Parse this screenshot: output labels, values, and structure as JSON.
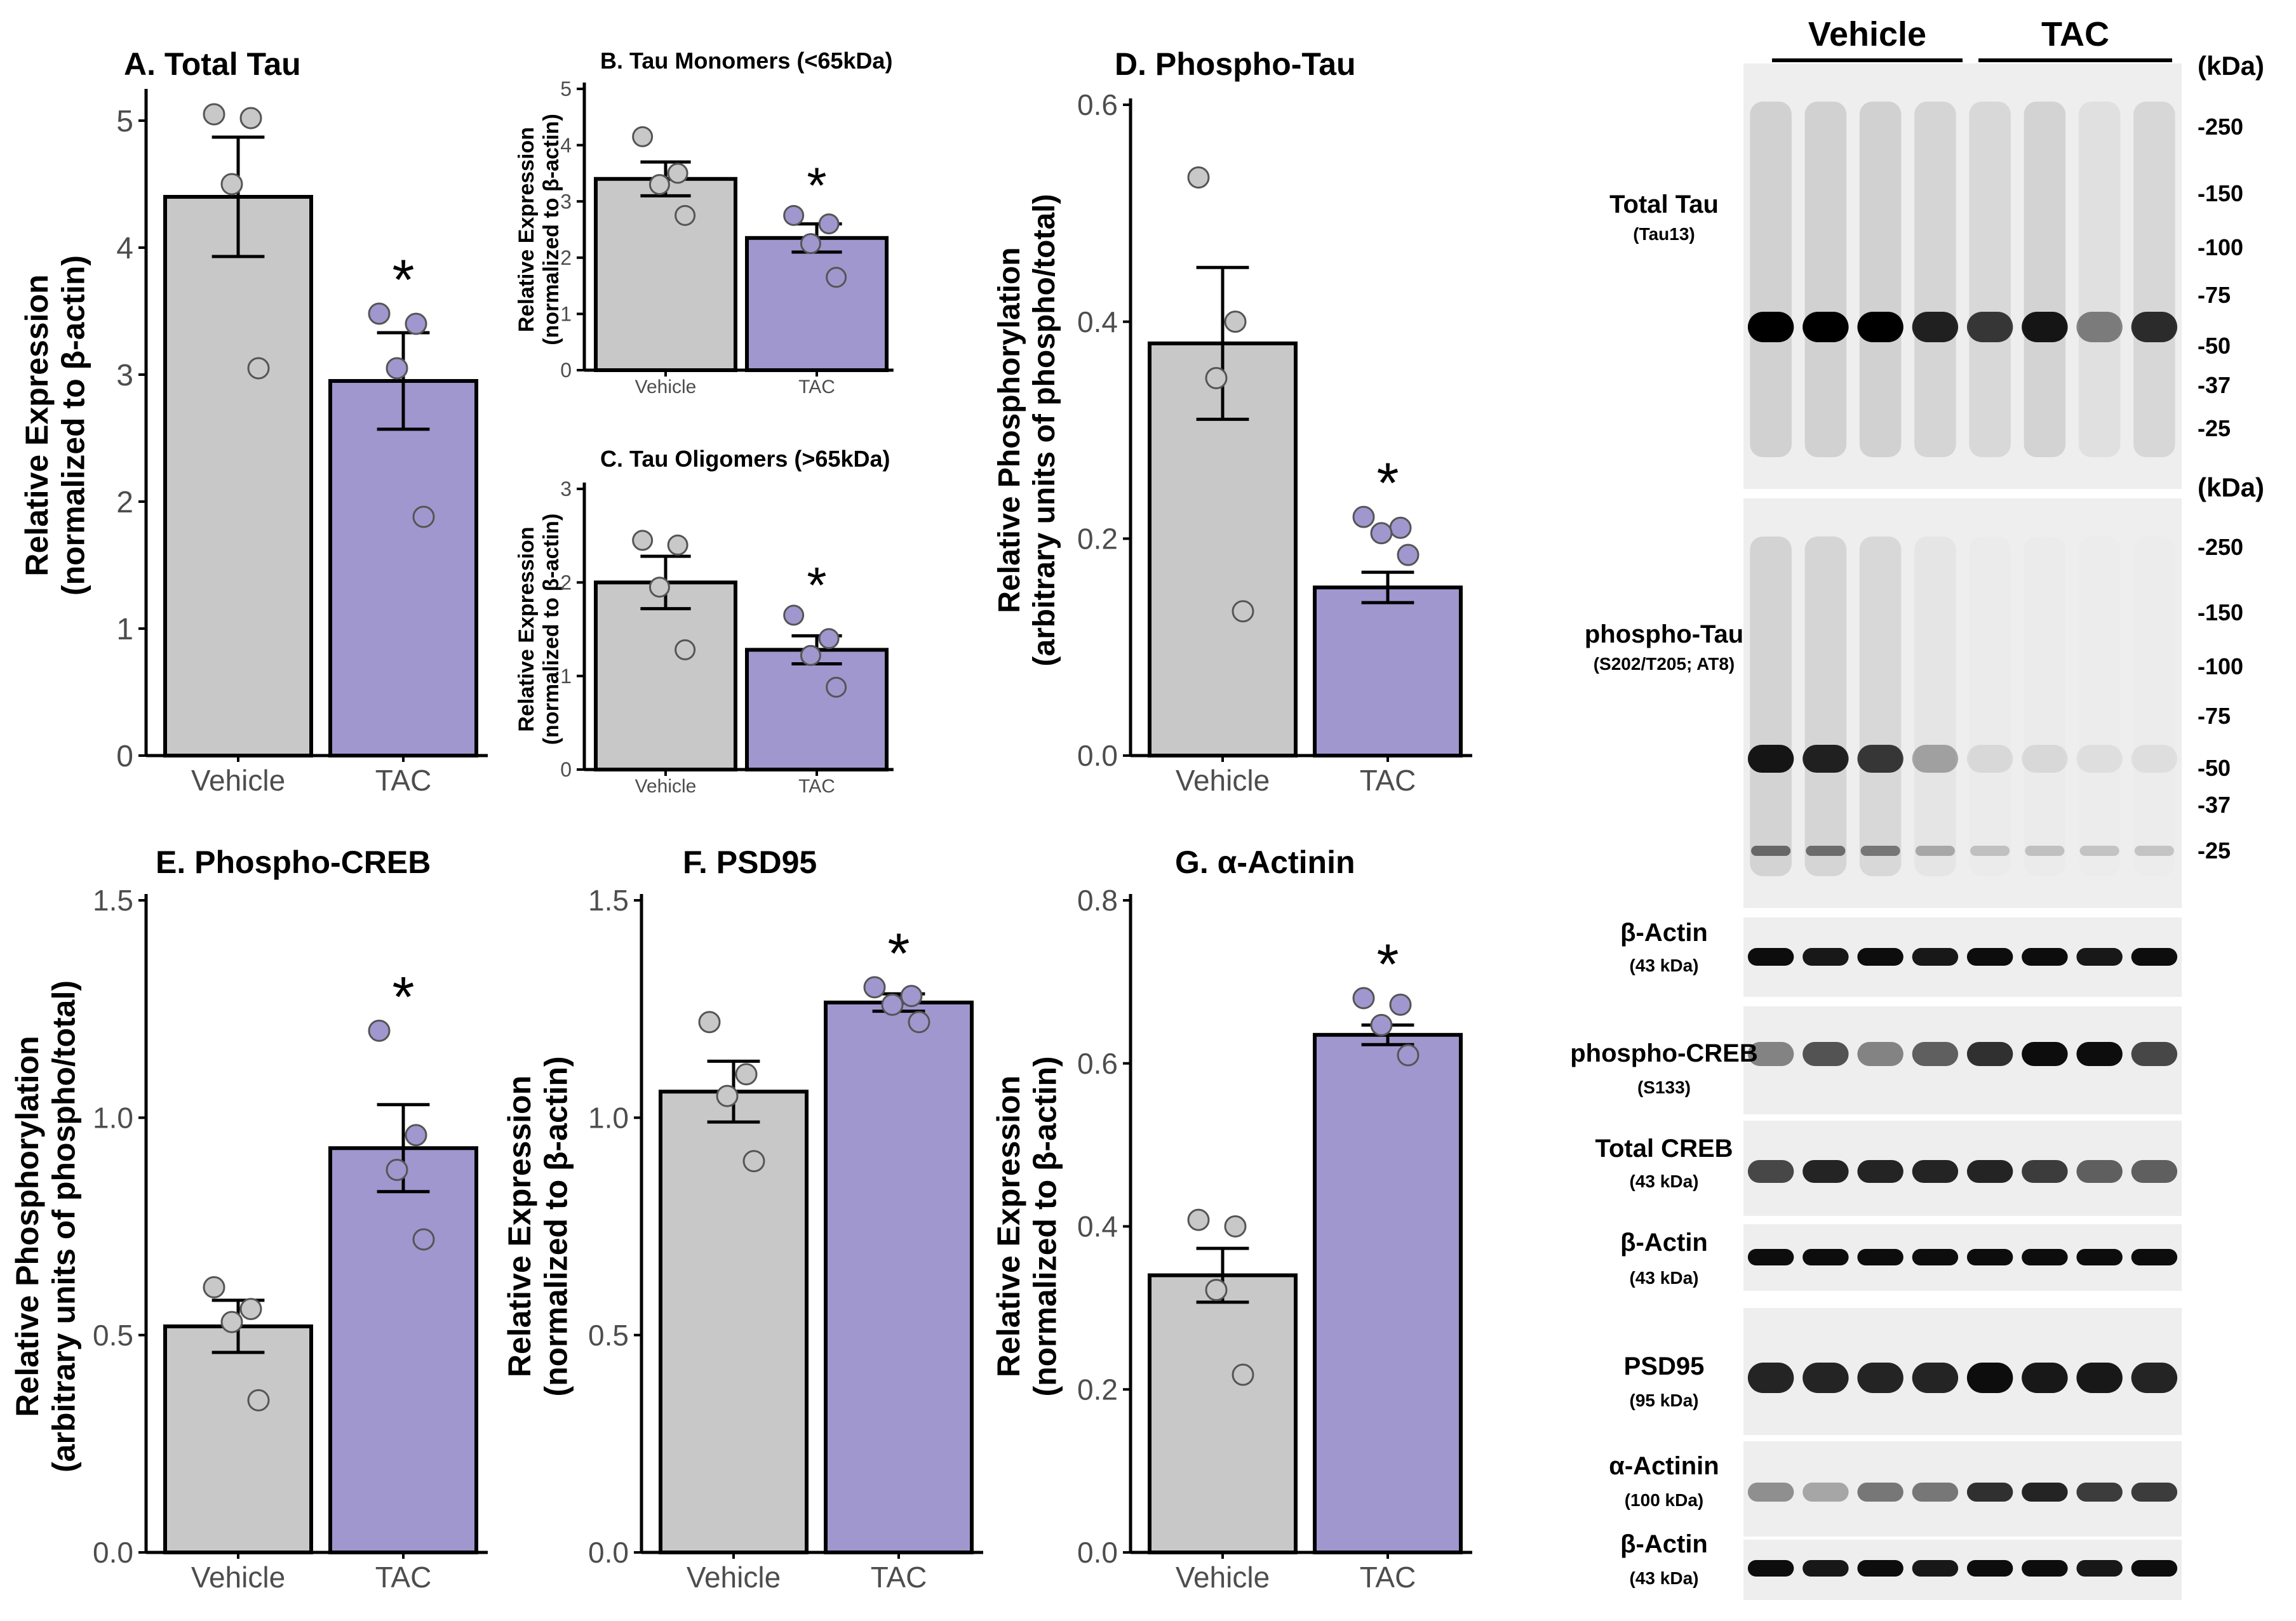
{
  "colors": {
    "vehicle_bar": "#c8c8c8",
    "tac_bar": "#a097cf",
    "axis": "#000000",
    "tick_text": "#4d4d4d"
  },
  "chart_data": [
    {
      "id": "A",
      "type": "bar",
      "title": "A. Total Tau",
      "ylabel": [
        "Relative Expression",
        "(normalized to  β-actin)"
      ],
      "categories": [
        "Vehicle",
        "TAC"
      ],
      "values": [
        4.4,
        2.95
      ],
      "errors": [
        0.47,
        0.38
      ],
      "points": [
        [
          5.05,
          5.02,
          4.5,
          3.05
        ],
        [
          3.48,
          3.4,
          3.05,
          1.88
        ]
      ],
      "ylim": [
        0,
        5.2
      ],
      "yticks": [
        0,
        1,
        2,
        3,
        4,
        5
      ],
      "significance": "*"
    },
    {
      "id": "B",
      "type": "bar",
      "title": "B. Tau Monomers (<65kDa)",
      "ylabel": [
        "Relative Expression",
        "(normalized to  β-actin)"
      ],
      "categories": [
        "Vehicle",
        "TAC"
      ],
      "values": [
        3.4,
        2.35
      ],
      "errors": [
        0.3,
        0.25
      ],
      "points": [
        [
          4.15,
          3.5,
          3.3,
          2.75
        ],
        [
          2.75,
          2.6,
          2.25,
          1.65
        ]
      ],
      "ylim": [
        0,
        5
      ],
      "yticks": [
        0,
        1,
        2,
        3,
        4,
        5
      ],
      "significance": "*"
    },
    {
      "id": "C",
      "type": "bar",
      "title": "C. Tau Oligomers (>65kDa)",
      "ylabel": [
        "Relative Expression",
        "(normalized to  β-actin)"
      ],
      "categories": [
        "Vehicle",
        "TAC"
      ],
      "values": [
        2.0,
        1.28
      ],
      "errors": [
        0.28,
        0.15
      ],
      "points": [
        [
          2.45,
          2.4,
          1.95,
          1.28
        ],
        [
          1.65,
          1.4,
          1.22,
          0.88
        ]
      ],
      "ylim": [
        0,
        3
      ],
      "yticks": [
        0,
        1,
        2,
        3
      ],
      "significance": "*"
    },
    {
      "id": "D",
      "type": "bar",
      "title": "D. Phospho-Tau",
      "ylabel": [
        "Relative Phosphorylation",
        "(arbitrary units of phospho/total)"
      ],
      "categories": [
        "Vehicle",
        "TAC"
      ],
      "values": [
        0.38,
        0.155
      ],
      "errors": [
        0.07,
        0.014
      ],
      "points": [
        [
          0.533,
          0.4,
          0.348,
          0.133
        ],
        [
          0.22,
          0.21,
          0.205,
          0.185
        ]
      ],
      "ylim": [
        0,
        0.6
      ],
      "yticks": [
        0.0,
        0.2,
        0.4,
        0.6
      ],
      "significance": "*"
    },
    {
      "id": "E",
      "type": "bar",
      "title": "E. Phospho-CREB",
      "ylabel": [
        "Relative Phosphorylation",
        "(arbitrary units of phospho/total)"
      ],
      "categories": [
        "Vehicle",
        "TAC"
      ],
      "values": [
        0.52,
        0.93
      ],
      "errors": [
        0.06,
        0.1
      ],
      "points": [
        [
          0.61,
          0.56,
          0.53,
          0.35
        ],
        [
          1.2,
          0.96,
          0.88,
          0.72
        ]
      ],
      "ylim": [
        0,
        1.5
      ],
      "yticks": [
        0.0,
        0.5,
        1.0,
        1.5
      ],
      "significance": "*"
    },
    {
      "id": "F",
      "type": "bar",
      "title": "F. PSD95",
      "ylabel": [
        "Relative Expression",
        "(normalized to  β-actin)"
      ],
      "categories": [
        "Vehicle",
        "TAC"
      ],
      "values": [
        1.06,
        1.265
      ],
      "errors": [
        0.07,
        0.02
      ],
      "points": [
        [
          1.22,
          1.1,
          1.05,
          0.9
        ],
        [
          1.3,
          1.28,
          1.26,
          1.22
        ]
      ],
      "ylim": [
        0,
        1.5
      ],
      "yticks": [
        0.0,
        0.5,
        1.0,
        1.5
      ],
      "significance": "*"
    },
    {
      "id": "G",
      "type": "bar",
      "title": "G. α-Actinin",
      "ylabel": [
        "Relative Expression",
        "(normalized to  β-actin)"
      ],
      "categories": [
        "Vehicle",
        "TAC"
      ],
      "values": [
        0.34,
        0.635
      ],
      "errors": [
        0.033,
        0.012
      ],
      "points": [
        [
          0.408,
          0.4,
          0.322,
          0.218
        ],
        [
          0.68,
          0.672,
          0.647,
          0.61
        ]
      ],
      "ylim": [
        0,
        0.8
      ],
      "yticks": [
        0.0,
        0.2,
        0.4,
        0.6,
        0.8
      ],
      "significance": "*"
    }
  ],
  "blot": {
    "group_labels": [
      "Vehicle",
      "TAC"
    ],
    "kda_header": "(kDa)",
    "panels": [
      {
        "name": "Total Tau",
        "sub": "(Tau13)",
        "markers": [
          "-250",
          "-150",
          "-100",
          "-75",
          "-50",
          "-37",
          "-25"
        ],
        "bands": [
          1.0,
          1.0,
          1.0,
          0.85,
          0.75,
          0.9,
          0.45,
          0.8
        ]
      },
      {
        "name": "phospho-Tau",
        "sub": "(S202/T205; AT8)",
        "markers": [
          "-250",
          "-150",
          "-100",
          "-75",
          "-50",
          "-37",
          "-25"
        ],
        "bands": [
          0.9,
          0.85,
          0.75,
          0.3,
          0.08,
          0.08,
          0.06,
          0.05
        ]
      },
      {
        "name": "β-Actin",
        "sub": "(43 kDa)",
        "bands": [
          0.95,
          0.9,
          0.95,
          0.9,
          0.95,
          0.95,
          0.9,
          0.95
        ]
      },
      {
        "name": "phospho-CREB",
        "sub": "(S133)",
        "bands": [
          0.45,
          0.65,
          0.45,
          0.6,
          0.8,
          0.95,
          0.95,
          0.7
        ]
      },
      {
        "name": "Total CREB",
        "sub": "(43 kDa)",
        "bands": [
          0.7,
          0.85,
          0.85,
          0.85,
          0.85,
          0.75,
          0.6,
          0.6
        ]
      },
      {
        "name": "β-Actin",
        "sub": "(43 kDa)",
        "bands": [
          0.95,
          0.95,
          0.95,
          0.95,
          0.95,
          0.95,
          0.95,
          0.95
        ]
      },
      {
        "name": "PSD95",
        "sub": "(95 kDa)",
        "bands": [
          0.85,
          0.85,
          0.85,
          0.85,
          0.95,
          0.9,
          0.9,
          0.85
        ]
      },
      {
        "name": "α-Actinin",
        "sub": "(100 kDa)",
        "bands": [
          0.4,
          0.3,
          0.5,
          0.5,
          0.8,
          0.85,
          0.75,
          0.75
        ]
      },
      {
        "name": "β-Actin",
        "sub": "(43 kDa)",
        "bands": [
          0.95,
          0.9,
          0.95,
          0.9,
          0.95,
          0.95,
          0.9,
          0.95
        ]
      }
    ]
  }
}
